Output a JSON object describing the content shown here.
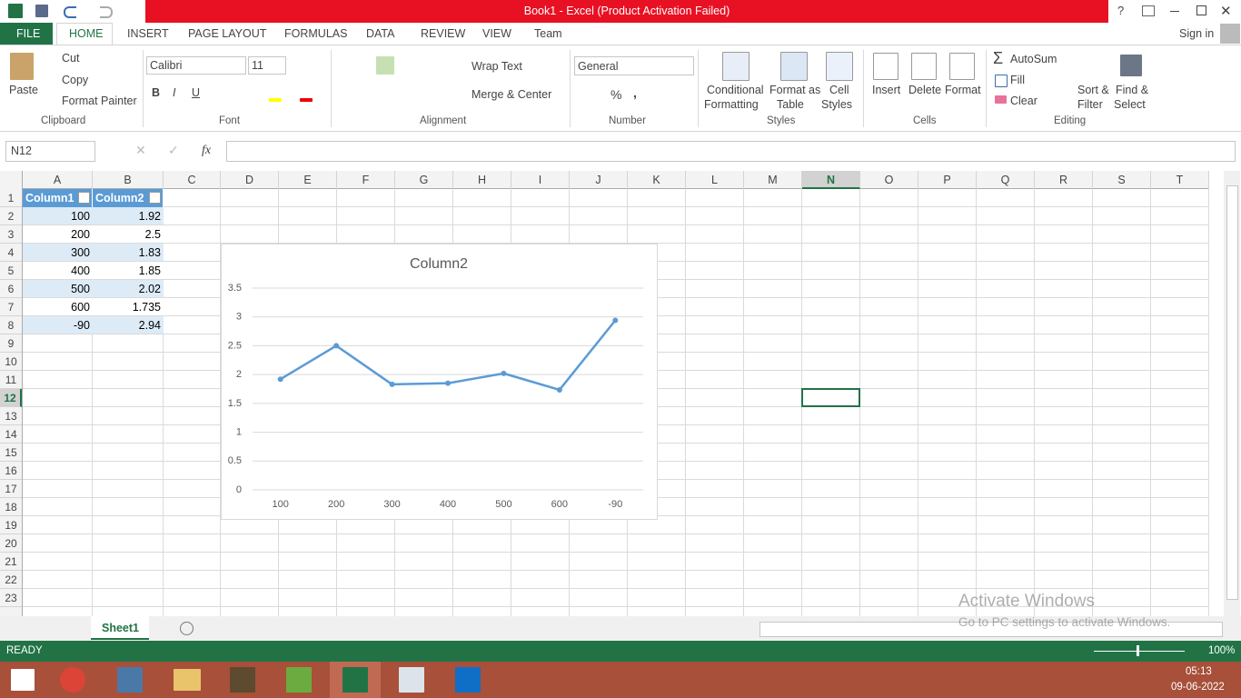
{
  "window": {
    "title": "Book1 -  Excel (Product Activation Failed)",
    "help": "?"
  },
  "tabs": [
    "FILE",
    "HOME",
    "INSERT",
    "PAGE LAYOUT",
    "FORMULAS",
    "DATA",
    "REVIEW",
    "VIEW",
    "Team"
  ],
  "sign_in": "Sign in",
  "ribbon": {
    "clipboard": {
      "paste": "Paste",
      "cut": "Cut",
      "copy": "Copy",
      "format_painter": "Format Painter",
      "label": "Clipboard"
    },
    "font": {
      "name": "Calibri",
      "size": "11",
      "bold": "B",
      "italic": "I",
      "underline": "U",
      "label": "Font"
    },
    "alignment": {
      "wrap_text": "Wrap Text",
      "merge_center": "Merge & Center",
      "label": "Alignment"
    },
    "number": {
      "format": "General",
      "percent": "%",
      "comma": ",",
      "label": "Number"
    },
    "styles": {
      "conditional": [
        "Conditional",
        "Formatting"
      ],
      "format_table": [
        "Format as",
        "Table"
      ],
      "cell_styles": [
        "Cell",
        "Styles"
      ],
      "label": "Styles"
    },
    "cells": {
      "insert": "Insert",
      "delete": "Delete",
      "format": "Format",
      "label": "Cells"
    },
    "editing": {
      "autosum": "AutoSum",
      "fill": "Fill",
      "clear": "Clear",
      "sort_filter": [
        "Sort &",
        "Filter"
      ],
      "find_select": [
        "Find &",
        "Select"
      ],
      "label": "Editing"
    }
  },
  "formula_bar": {
    "name_box": "N12",
    "fx": "fx"
  },
  "columns": [
    "A",
    "B",
    "C",
    "D",
    "E",
    "F",
    "G",
    "H",
    "I",
    "J",
    "K",
    "L",
    "M",
    "N",
    "O",
    "P",
    "Q",
    "R",
    "S",
    "T"
  ],
  "row_numbers": [
    1,
    2,
    3,
    4,
    5,
    6,
    7,
    8,
    9,
    10,
    11,
    12,
    13,
    14,
    15,
    16,
    17,
    18,
    19,
    20,
    21,
    22,
    23
  ],
  "table": {
    "header": [
      "Column1",
      "Column2"
    ],
    "rows": [
      [
        100,
        1.92
      ],
      [
        200,
        2.5
      ],
      [
        300,
        1.83
      ],
      [
        400,
        1.85
      ],
      [
        500,
        2.02
      ],
      [
        600,
        1.735
      ],
      [
        -90,
        2.94
      ]
    ]
  },
  "chart_data": {
    "type": "line",
    "title": "Column2",
    "categories": [
      "100",
      "200",
      "300",
      "400",
      "500",
      "600",
      "-90"
    ],
    "series": [
      {
        "name": "Column2",
        "color": "#5b9bd5",
        "values": [
          1.92,
          2.5,
          1.83,
          1.85,
          2.02,
          1.735,
          2.94
        ]
      }
    ],
    "ylim": [
      0,
      3.5
    ],
    "yticks": [
      0,
      0.5,
      1,
      1.5,
      2,
      2.5,
      3,
      3.5
    ],
    "grid": true
  },
  "sheet_tab": "Sheet1",
  "status": {
    "state": "READY",
    "zoom": "100%"
  },
  "watermark": {
    "title": "Activate Windows",
    "text": "Go to PC settings to activate Windows."
  },
  "taskbar": {
    "time": "05:13",
    "date": "09-06-2022"
  }
}
